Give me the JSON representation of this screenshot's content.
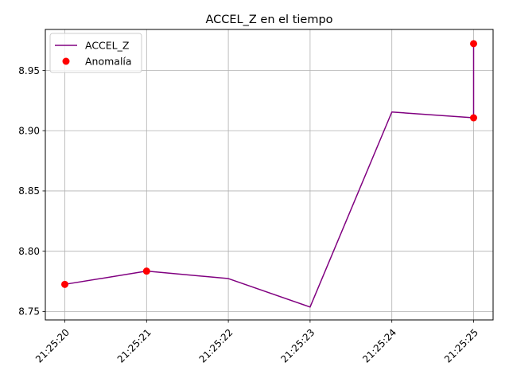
{
  "chart_data": {
    "type": "line",
    "title": "ACCEL_Z en el tiempo",
    "xlabel": "",
    "ylabel": "",
    "x": [
      "21:25:20",
      "21:25:21",
      "21:25:22",
      "21:25:23",
      "21:25:24",
      "21:25:25",
      "21:25:25"
    ],
    "xticks": [
      "21:25:20",
      "21:25:21",
      "21:25:22",
      "21:25:23",
      "21:25:24",
      "21:25:25"
    ],
    "yticks": [
      "8.75",
      "8.80",
      "8.85",
      "8.90",
      "8.95"
    ],
    "ylim": [
      8.743,
      8.984
    ],
    "grid": true,
    "legend_position": "top-left",
    "series": [
      {
        "name": "ACCEL_Z",
        "kind": "line",
        "color": "#800080",
        "x_index": [
          0,
          1,
          2,
          3,
          4,
          5,
          5
        ],
        "values": [
          8.7725,
          8.7835,
          8.7773,
          8.7537,
          8.9155,
          8.9107,
          8.9722
        ]
      },
      {
        "name": "Anomalía",
        "kind": "scatter",
        "color": "#ff0000",
        "x_index": [
          0,
          1,
          5,
          5
        ],
        "values": [
          8.7725,
          8.7835,
          8.9107,
          8.9722
        ]
      }
    ]
  }
}
